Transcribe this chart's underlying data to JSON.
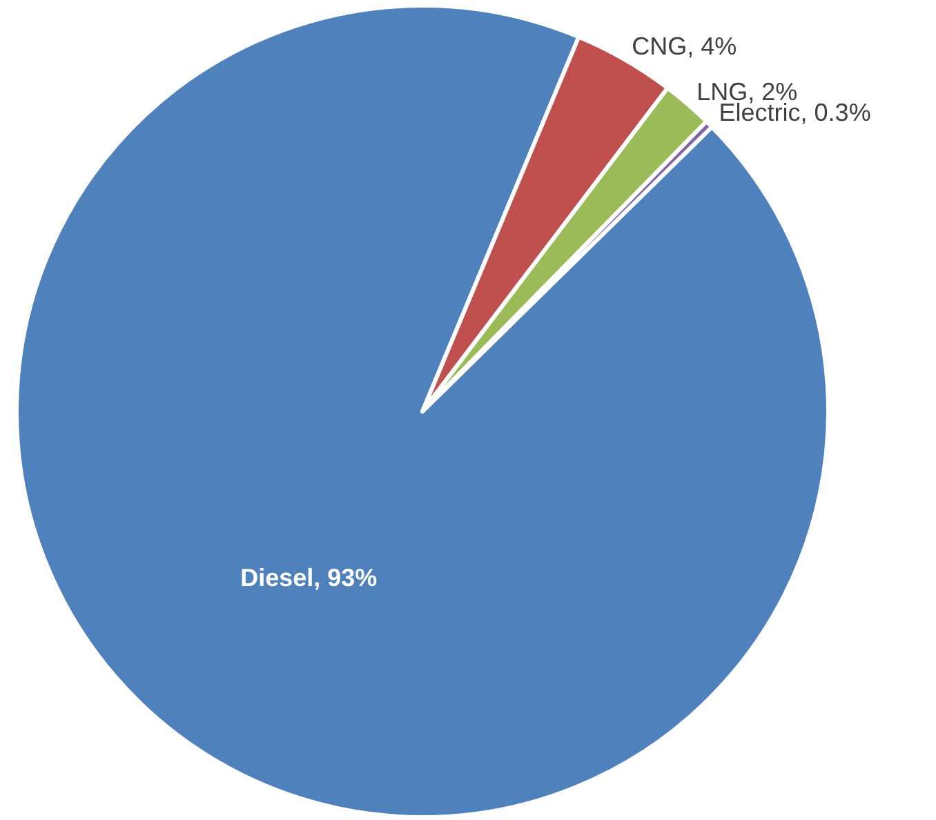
{
  "chart_data": {
    "type": "pie",
    "categories": [
      "Diesel",
      "CNG",
      "LNG",
      "Electric"
    ],
    "values": [
      93,
      4,
      2,
      0.3
    ],
    "colors": [
      "#4f81bd",
      "#c0504d",
      "#9bbb59",
      "#8064a2"
    ],
    "value_labels": [
      "93%",
      "4%",
      "2%",
      "0.3%"
    ]
  }
}
